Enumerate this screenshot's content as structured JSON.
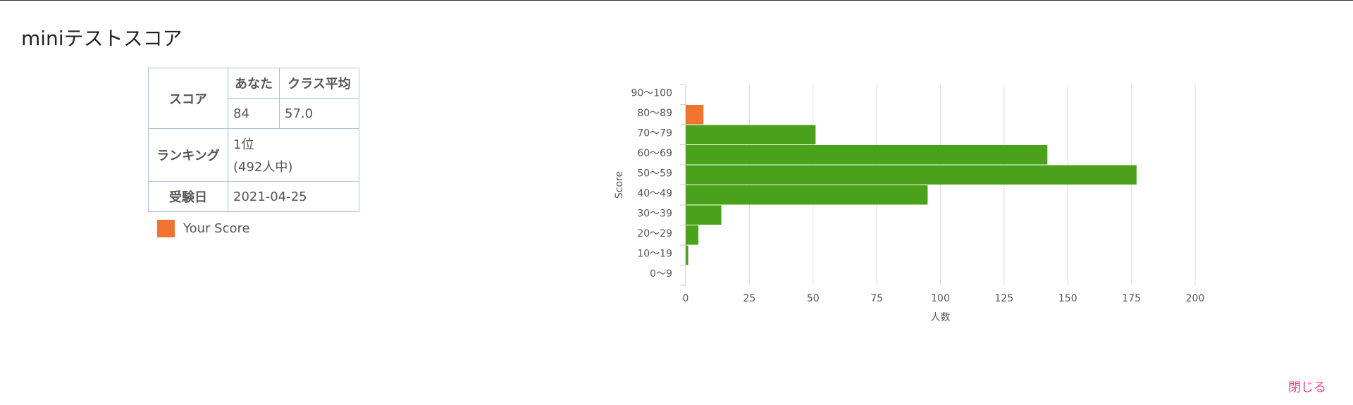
{
  "header": {
    "title": "miniテストスコア"
  },
  "table": {
    "rows": [
      [
        "スコア",
        "あなた",
        "クラス平均"
      ],
      [
        "84",
        "57.0"
      ],
      [
        "ランキング",
        "1位",
        "(492人中)"
      ],
      [
        "受験日",
        "2021-04-25"
      ]
    ]
  },
  "legend": {
    "label": "Your Score",
    "color": "#f07430"
  },
  "chart_data": {
    "type": "hbar",
    "categories": [
      "90～100",
      "80～89",
      "70～79",
      "60～69",
      "50～59",
      "40～49",
      "30～39",
      "20～29",
      "10～19",
      "0～9"
    ],
    "values": [
      0,
      7,
      51,
      142,
      177,
      95,
      14,
      5,
      1,
      0
    ],
    "colors": [
      "#4aa11a",
      "#f07430",
      "#4aa11a",
      "#4aa11a",
      "#4aa11a",
      "#4aa11a",
      "#4aa11a",
      "#4aa11a",
      "#4aa11a",
      "#4aa11a"
    ],
    "xlim": [
      0,
      200
    ],
    "xticks": [
      0,
      25,
      50,
      75,
      100,
      125,
      150,
      175,
      200
    ],
    "xlabel": "人数",
    "ylabel": "Score",
    "grid": true
  },
  "close_button": "閉じる"
}
